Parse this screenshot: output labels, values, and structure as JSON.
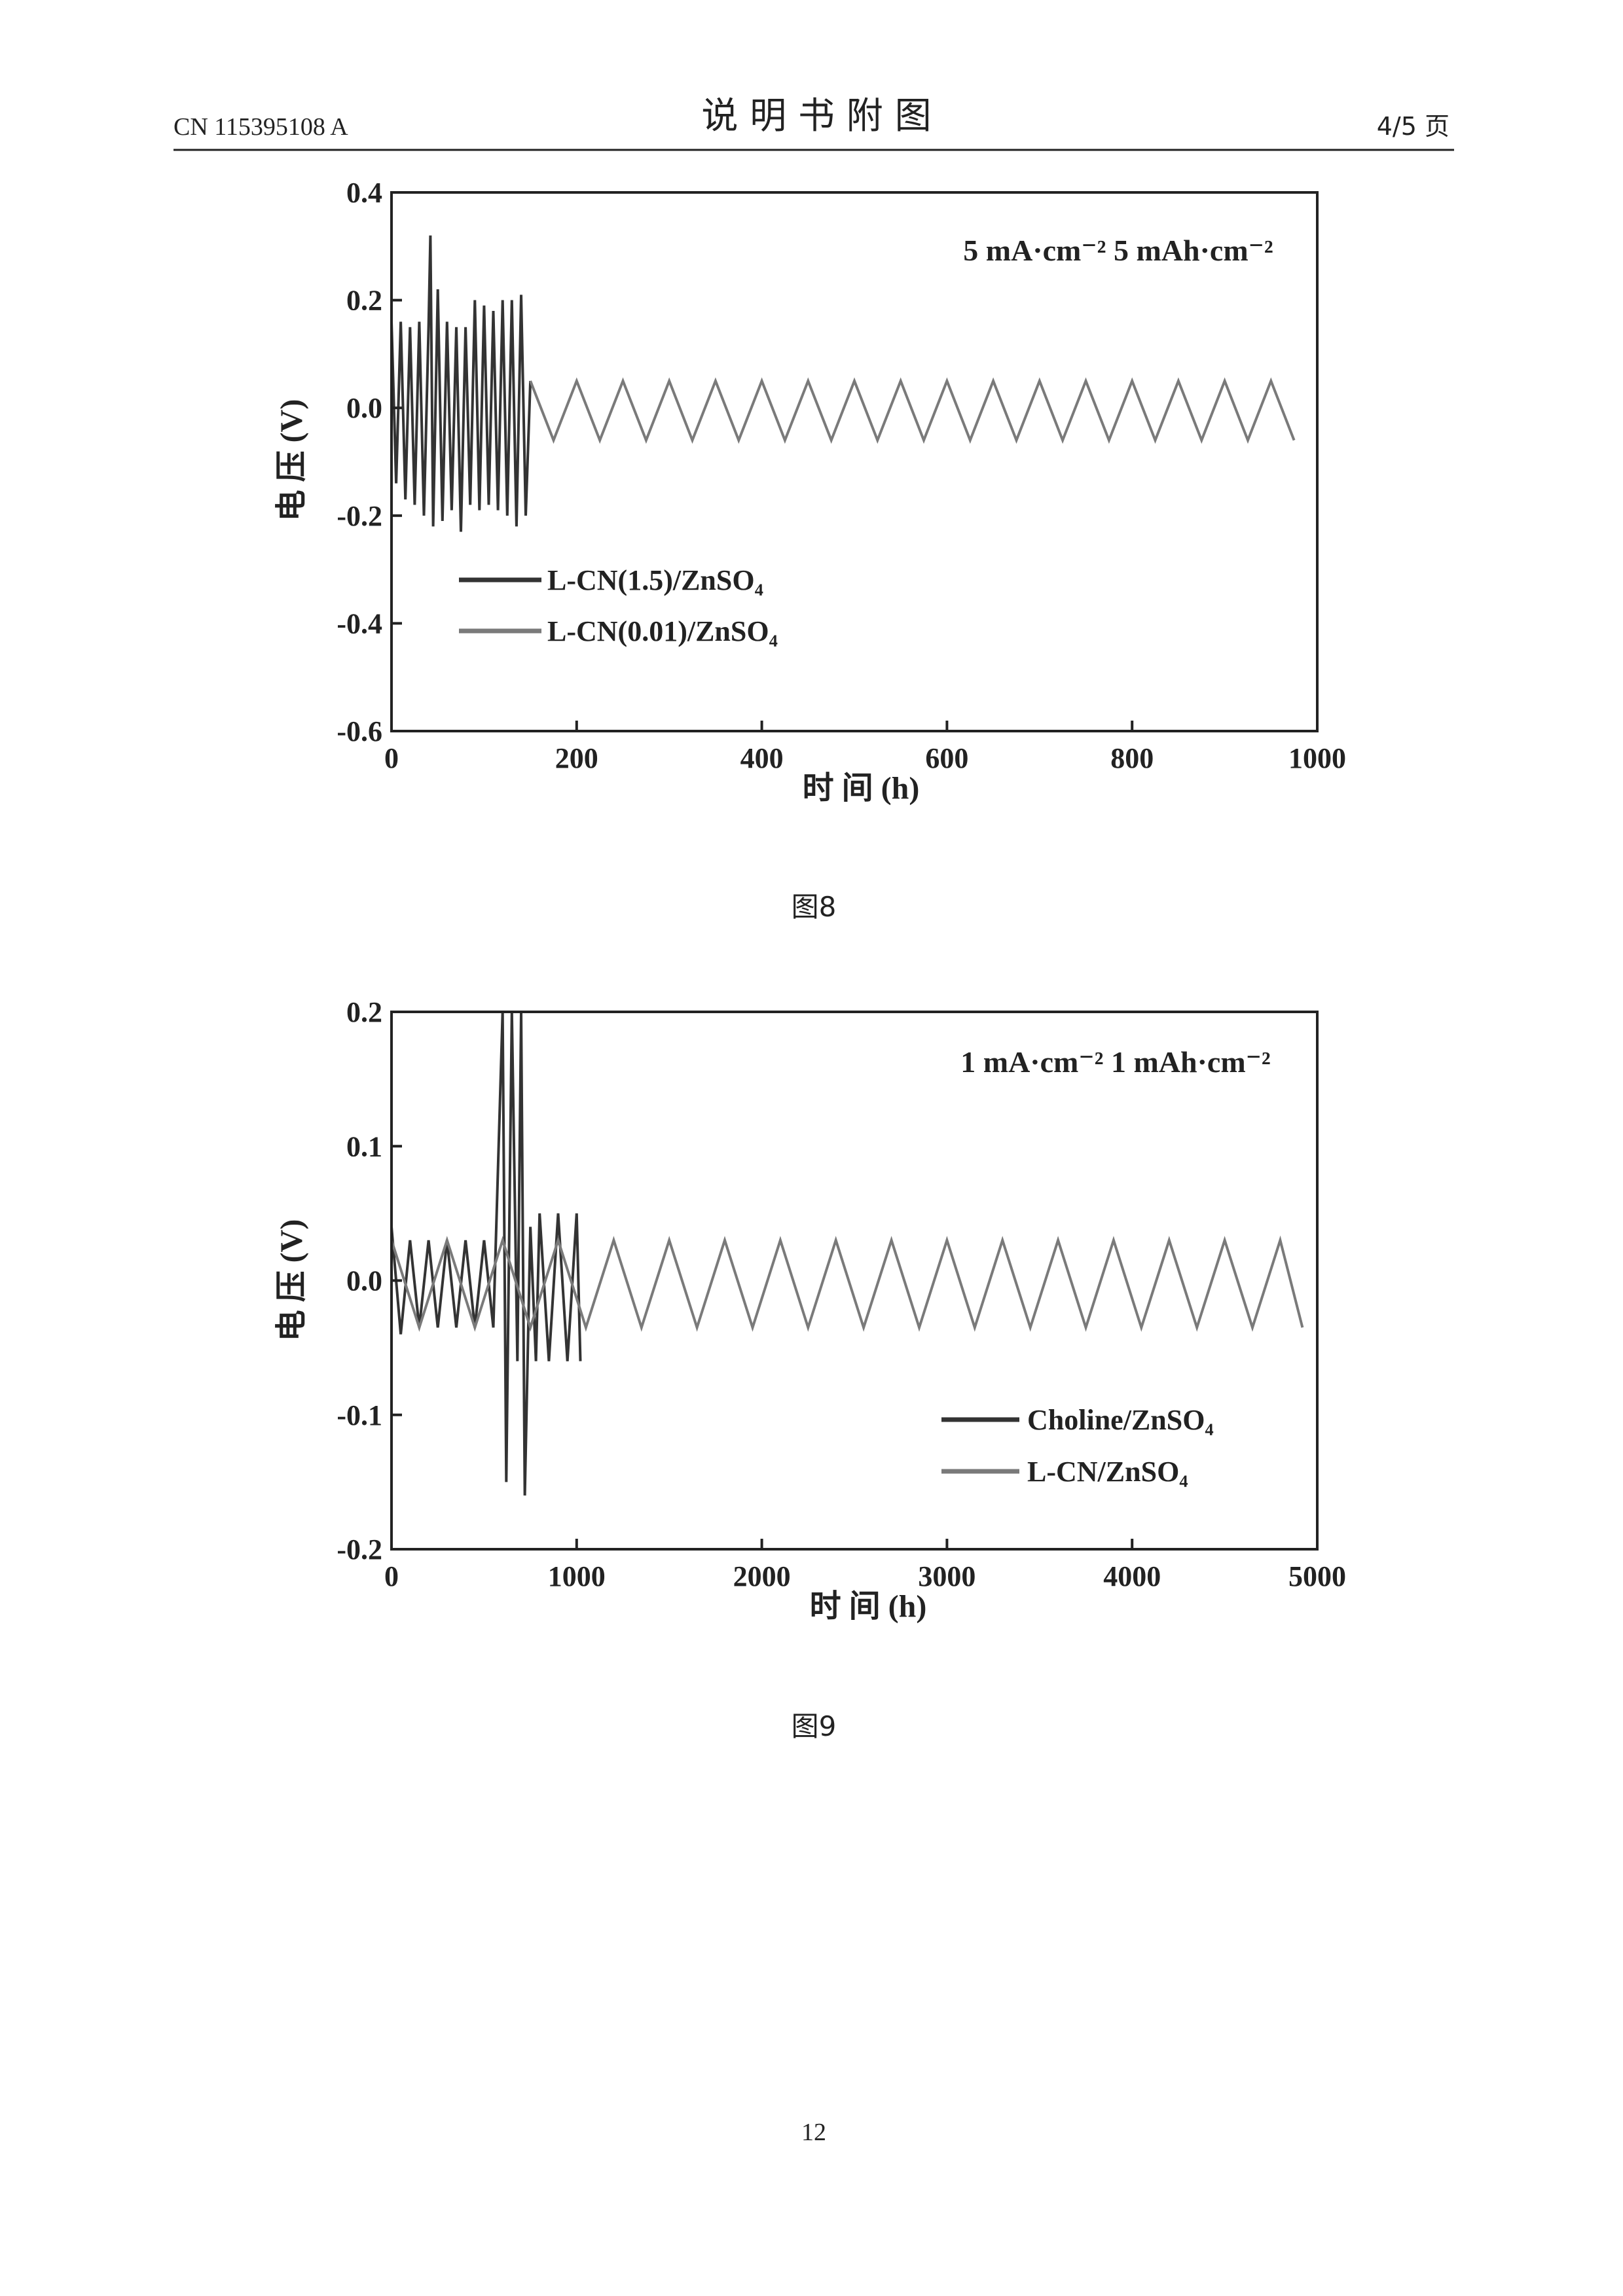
{
  "header": {
    "doc_number": "CN 115395108 A",
    "title": "说 明 书 附 图",
    "page_of": "4/5 页"
  },
  "chart_data": [
    {
      "type": "line",
      "annotation": "5 mA·cm⁻²  5 mAh·cm⁻²",
      "xlabel": "时 间 (h)",
      "ylabel": "电 压 (V)",
      "caption": "图8",
      "xlim": [
        0,
        1000
      ],
      "xticks": [
        0,
        200,
        400,
        600,
        800,
        1000
      ],
      "ylim": [
        -0.6,
        0.4
      ],
      "yticks": [
        0.4,
        0.2,
        {
          "value": 0,
          "label": "0.0"
        },
        -0.2,
        -0.4,
        -0.6
      ],
      "series": [
        {
          "name": "L-CN(1.5)/ZnSO₄",
          "color": "#333333",
          "x": [
            0,
            5,
            10,
            15,
            20,
            25,
            30,
            35,
            40,
            42,
            45,
            50,
            55,
            60,
            65,
            70,
            75,
            80,
            85,
            90,
            95,
            100,
            105,
            110,
            115,
            120,
            125,
            130,
            135,
            140,
            145,
            150
          ],
          "values": [
            0.16,
            -0.14,
            0.16,
            -0.17,
            0.15,
            -0.18,
            0.16,
            -0.2,
            0.15,
            0.32,
            -0.22,
            0.22,
            -0.21,
            0.16,
            -0.19,
            0.15,
            -0.23,
            0.15,
            -0.18,
            0.2,
            -0.19,
            0.19,
            -0.18,
            0.18,
            -0.19,
            0.2,
            -0.2,
            0.2,
            -0.22,
            0.21,
            -0.2,
            0.05
          ]
        },
        {
          "name": "L-CN(0.01)/ZnSO₄",
          "color": "#7a7a7a",
          "x": [
            150,
            175,
            200,
            225,
            250,
            275,
            300,
            325,
            350,
            375,
            400,
            425,
            450,
            475,
            500,
            525,
            550,
            575,
            600,
            625,
            650,
            675,
            700,
            725,
            750,
            775,
            800,
            825,
            850,
            875,
            900,
            925,
            950,
            975
          ],
          "values": [
            0.05,
            -0.06,
            0.05,
            -0.06,
            0.05,
            -0.06,
            0.05,
            -0.06,
            0.05,
            -0.06,
            0.05,
            -0.06,
            0.05,
            -0.06,
            0.05,
            -0.06,
            0.05,
            -0.06,
            0.05,
            -0.06,
            0.05,
            -0.06,
            0.05,
            -0.06,
            0.05,
            -0.06,
            0.05,
            -0.06,
            0.05,
            -0.06,
            0.05,
            -0.06,
            0.05,
            -0.06
          ]
        }
      ]
    },
    {
      "type": "line",
      "annotation": "1 mA·cm⁻²  1 mAh·cm⁻²",
      "xlabel": "时 间 (h)",
      "ylabel": "电 压 (V)",
      "caption": "图9",
      "xlim": [
        0,
        5000
      ],
      "xticks": [
        0,
        1000,
        2000,
        3000,
        4000,
        5000
      ],
      "ylim": [
        -0.2,
        0.2
      ],
      "yticks": [
        0.2,
        0.1,
        {
          "value": 0,
          "label": "0.0"
        },
        -0.1,
        -0.2
      ],
      "series": [
        {
          "name": "Choline/ZnSO₄",
          "color": "#333333",
          "x": [
            0,
            50,
            100,
            150,
            200,
            250,
            300,
            350,
            400,
            450,
            500,
            550,
            600,
            620,
            650,
            680,
            700,
            720,
            750,
            780,
            800,
            850,
            900,
            950,
            1000,
            1020
          ],
          "values": [
            0.04,
            -0.04,
            0.03,
            -0.035,
            0.03,
            -0.035,
            0.03,
            -0.035,
            0.03,
            -0.035,
            0.03,
            -0.035,
            0.2,
            -0.15,
            0.2,
            -0.06,
            0.2,
            -0.16,
            0.04,
            -0.06,
            0.05,
            -0.06,
            0.05,
            -0.06,
            0.05,
            -0.06
          ]
        },
        {
          "name": "L-CN/ZnSO₄",
          "color": "#7a7a7a",
          "x": [
            0,
            150,
            300,
            450,
            600,
            750,
            900,
            1050,
            1200,
            1350,
            1500,
            1650,
            1800,
            1950,
            2100,
            2250,
            2400,
            2550,
            2700,
            2850,
            3000,
            3150,
            3300,
            3450,
            3600,
            3750,
            3900,
            4050,
            4200,
            4350,
            4500,
            4650,
            4800,
            4920
          ],
          "values": [
            0.03,
            -0.035,
            0.03,
            -0.035,
            0.03,
            -0.035,
            0.03,
            -0.035,
            0.03,
            -0.035,
            0.03,
            -0.035,
            0.03,
            -0.035,
            0.03,
            -0.035,
            0.03,
            -0.035,
            0.03,
            -0.035,
            0.03,
            -0.035,
            0.03,
            -0.035,
            0.03,
            -0.035,
            0.03,
            -0.035,
            0.03,
            -0.035,
            0.03,
            -0.035,
            0.03,
            -0.035
          ]
        }
      ]
    }
  ],
  "footer": {
    "page_number": "12"
  }
}
